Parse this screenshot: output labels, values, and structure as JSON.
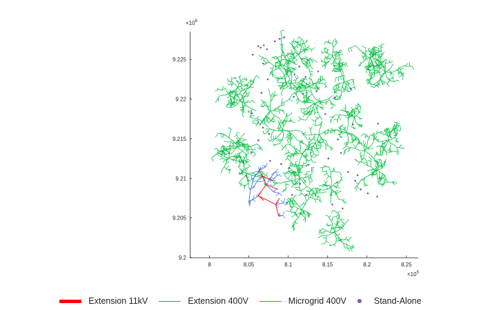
{
  "chart_data": {
    "type": "scatter",
    "title": "",
    "xlabel": "",
    "ylabel": "",
    "xlim": [
      797500.0,
      826500.0
    ],
    "ylim": [
      9200000.0,
      9228500.0
    ],
    "x_ticks": [
      8,
      8.05,
      8.1,
      8.15,
      8.2,
      8.25
    ],
    "x_tick_labels": [
      "8",
      "8.05",
      "8.1",
      "8.15",
      "8.2",
      "8.25"
    ],
    "x_exponent": "×10",
    "x_exponent_power": "5",
    "y_ticks": [
      9.2,
      9.205,
      9.21,
      9.215,
      9.22,
      9.225
    ],
    "y_tick_labels": [
      "9.2",
      "9.205",
      "9.21",
      "9.215",
      "9.22",
      "9.225"
    ],
    "y_exponent": "×10",
    "y_exponent_power": "6",
    "grid": false,
    "legend_position": "bottom",
    "series": [
      {
        "name": "Extension 11kV",
        "kind": "line",
        "color": "#ff0000",
        "segments": [
          [
            [
              806300,
              9211000
            ],
            [
              806700,
              9210300
            ],
            [
              807200,
              9209200
            ],
            [
              806200,
              9207800
            ],
            [
              808400,
              9206700
            ],
            [
              808800,
              9205200
            ]
          ],
          [
            [
              807200,
              9209200
            ],
            [
              808700,
              9208600
            ]
          ],
          [
            [
              806700,
              9210300
            ],
            [
              808000,
              9209700
            ]
          ],
          [
            [
              806200,
              9207800
            ],
            [
              806900,
              9207200
            ]
          ],
          [
            [
              808400,
              9206700
            ],
            [
              808900,
              9207500
            ]
          ]
        ]
      },
      {
        "name": "Extension 400V",
        "kind": "line",
        "color": "#4472f0",
        "segments": [
          [
            [
              806300,
              9211000
            ],
            [
              805600,
              9210000
            ],
            [
              805200,
              9208500
            ],
            [
              805000,
              9207000
            ]
          ],
          [
            [
              806700,
              9210300
            ],
            [
              806000,
              9209600
            ],
            [
              805600,
              9208800
            ]
          ],
          [
            [
              807200,
              9209200
            ],
            [
              807800,
              9210100
            ],
            [
              808300,
              9210800
            ]
          ],
          [
            [
              807200,
              9209200
            ],
            [
              808100,
              9208300
            ],
            [
              808900,
              9208100
            ]
          ],
          [
            [
              806200,
              9207800
            ],
            [
              805500,
              9207300
            ],
            [
              805000,
              9207100
            ]
          ],
          [
            [
              808400,
              9206700
            ],
            [
              809400,
              9206900
            ]
          ],
          [
            [
              808800,
              9205200
            ],
            [
              809300,
              9205300
            ]
          ],
          [
            [
              806300,
              9211000
            ],
            [
              807200,
              9211500
            ]
          ],
          [
            [
              808000,
              9209700
            ],
            [
              808600,
              9210400
            ]
          ]
        ]
      },
      {
        "name": "Microgrid 400V",
        "kind": "line",
        "color": "#00bf40",
        "hubs": [
          [
            803600,
            9221500
          ],
          [
            808800,
            9223900
          ],
          [
            809700,
            9225000
          ],
          [
            810400,
            9222000
          ],
          [
            812700,
            9221600
          ],
          [
            817100,
            9222100
          ],
          [
            813400,
            9219400
          ],
          [
            818400,
            9217700
          ],
          [
            822700,
            9214800
          ],
          [
            819700,
            9213500
          ],
          [
            821200,
            9211000
          ],
          [
            815400,
            9208900
          ],
          [
            809300,
            9216100
          ],
          [
            803600,
            9214000
          ],
          [
            802500,
            9212600
          ],
          [
            804700,
            9210600
          ],
          [
            811700,
            9206000
          ],
          [
            815900,
            9203200
          ],
          [
            811500,
            9210000
          ],
          [
            811800,
            9213100
          ],
          [
            807700,
            9218500
          ],
          [
            803900,
            9219800
          ],
          [
            813900,
            9215500
          ],
          [
            817400,
            9215800
          ],
          [
            811300,
            9225600
          ],
          [
            815600,
            9225400
          ],
          [
            820400,
            9225200
          ],
          [
            822300,
            9223400
          ]
        ]
      },
      {
        "name": "Stand-Alone",
        "kind": "scatter",
        "color": "#7e57a6",
        "points": [
          [
            806200,
            9226700
          ],
          [
            806500,
            9226500
          ],
          [
            806900,
            9226800
          ],
          [
            807300,
            9226300
          ],
          [
            808300,
            9227300
          ],
          [
            808900,
            9227600
          ],
          [
            809500,
            9227800
          ],
          [
            805500,
            9225600
          ],
          [
            806800,
            9224500
          ],
          [
            810800,
            9223100
          ],
          [
            811400,
            9224100
          ],
          [
            812200,
            9222800
          ],
          [
            813800,
            9223500
          ],
          [
            807400,
            9222500
          ],
          [
            806600,
            9220800
          ],
          [
            810700,
            9220300
          ],
          [
            811900,
            9220700
          ],
          [
            813600,
            9221000
          ],
          [
            815900,
            9220200
          ],
          [
            817900,
            9221300
          ],
          [
            805400,
            9218200
          ],
          [
            806200,
            9217100
          ],
          [
            806800,
            9216400
          ],
          [
            807600,
            9215600
          ],
          [
            806200,
            9214800
          ],
          [
            805300,
            9213300
          ],
          [
            804300,
            9212000
          ],
          [
            807700,
            9212200
          ],
          [
            809100,
            9211800
          ],
          [
            810100,
            9211300
          ],
          [
            812600,
            9211700
          ],
          [
            815100,
            9212500
          ],
          [
            816700,
            9213200
          ],
          [
            817600,
            9210800
          ],
          [
            818500,
            9209700
          ],
          [
            819200,
            9208600
          ],
          [
            820100,
            9208100
          ],
          [
            821300,
            9207700
          ],
          [
            812300,
            9207900
          ],
          [
            809800,
            9206900
          ],
          [
            810500,
            9207900
          ],
          [
            815600,
            9206700
          ],
          [
            816900,
            9206200
          ],
          [
            818800,
            9210400
          ],
          [
            818200,
            9216800
          ],
          [
            816300,
            9214900
          ],
          [
            821400,
            9216900
          ],
          [
            814700,
            9218100
          ],
          [
            804700,
            9210300
          ],
          [
            811500,
            9209300
          ]
        ]
      }
    ]
  }
}
